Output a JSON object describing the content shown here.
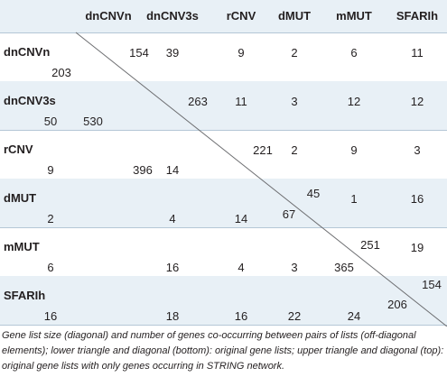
{
  "table": {
    "columns": [
      "dnCNVn",
      "dnCNV3s",
      "rCNV",
      "dMUT",
      "mMUT",
      "SFARIh"
    ],
    "rows": [
      {
        "label": "dnCNVn",
        "cells": [
          "154",
          "39",
          "9",
          "2",
          "6",
          "11"
        ],
        "lower": [
          "203"
        ]
      },
      {
        "label": "dnCNV3s",
        "cells": [
          "",
          "263",
          "11",
          "3",
          "12",
          "12"
        ],
        "lower": [
          "50",
          "530"
        ]
      },
      {
        "label": "rCNV",
        "cells": [
          "",
          "",
          "221",
          "2",
          "9",
          "3"
        ],
        "lower": [
          "9",
          "14",
          "396"
        ]
      },
      {
        "label": "dMUT",
        "cells": [
          "",
          "",
          "",
          "45",
          "1",
          "16"
        ],
        "lower": [
          "2",
          "4",
          "14",
          "67"
        ]
      },
      {
        "label": "mMUT",
        "cells": [
          "",
          "",
          "",
          "",
          "251",
          "19"
        ],
        "lower": [
          "6",
          "16",
          "4",
          "3",
          "365"
        ]
      },
      {
        "label": "SFARIh",
        "cells": [
          "",
          "",
          "",
          "",
          "",
          "154"
        ],
        "lower": [
          "16",
          "18",
          "16",
          "22",
          "24",
          "206"
        ]
      }
    ]
  },
  "caption": "Gene list size (diagonal) and number of genes co-occurring between pairs of lists (off-diagonal elements); lower triangle and diagonal (bottom): original gene lists; upper triangle and diagonal (top): original gene lists with only genes occurring in STRING network."
}
